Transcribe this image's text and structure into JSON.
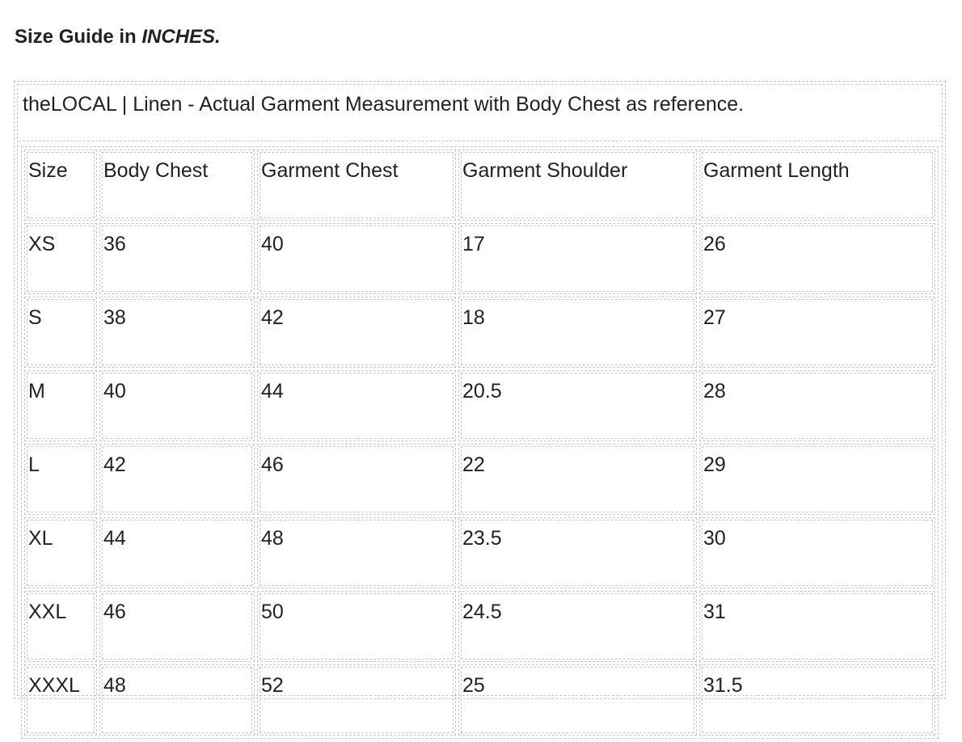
{
  "heading": {
    "text": "Size Guide in ",
    "emphasis": "INCHES."
  },
  "table": {
    "caption": "theLOCAL | Linen - Actual Garment Measurement with Body Chest as reference.",
    "columns": [
      "Size",
      "Body Chest",
      "Garment Chest",
      "Garment Shoulder",
      "Garment Length"
    ],
    "rows": [
      [
        "XS",
        "36",
        "40",
        "17",
        "26"
      ],
      [
        "S",
        "38",
        "42",
        "18",
        "27"
      ],
      [
        "M",
        "40",
        "44",
        "20.5",
        "28"
      ],
      [
        "L",
        "42",
        "46",
        "22",
        "29"
      ],
      [
        "XL",
        "44",
        "48",
        "23.5",
        "30"
      ],
      [
        "XXL",
        "46",
        "50",
        "24.5",
        "31"
      ],
      [
        "XXXL",
        "48",
        "52",
        "25",
        "31.5"
      ]
    ]
  }
}
